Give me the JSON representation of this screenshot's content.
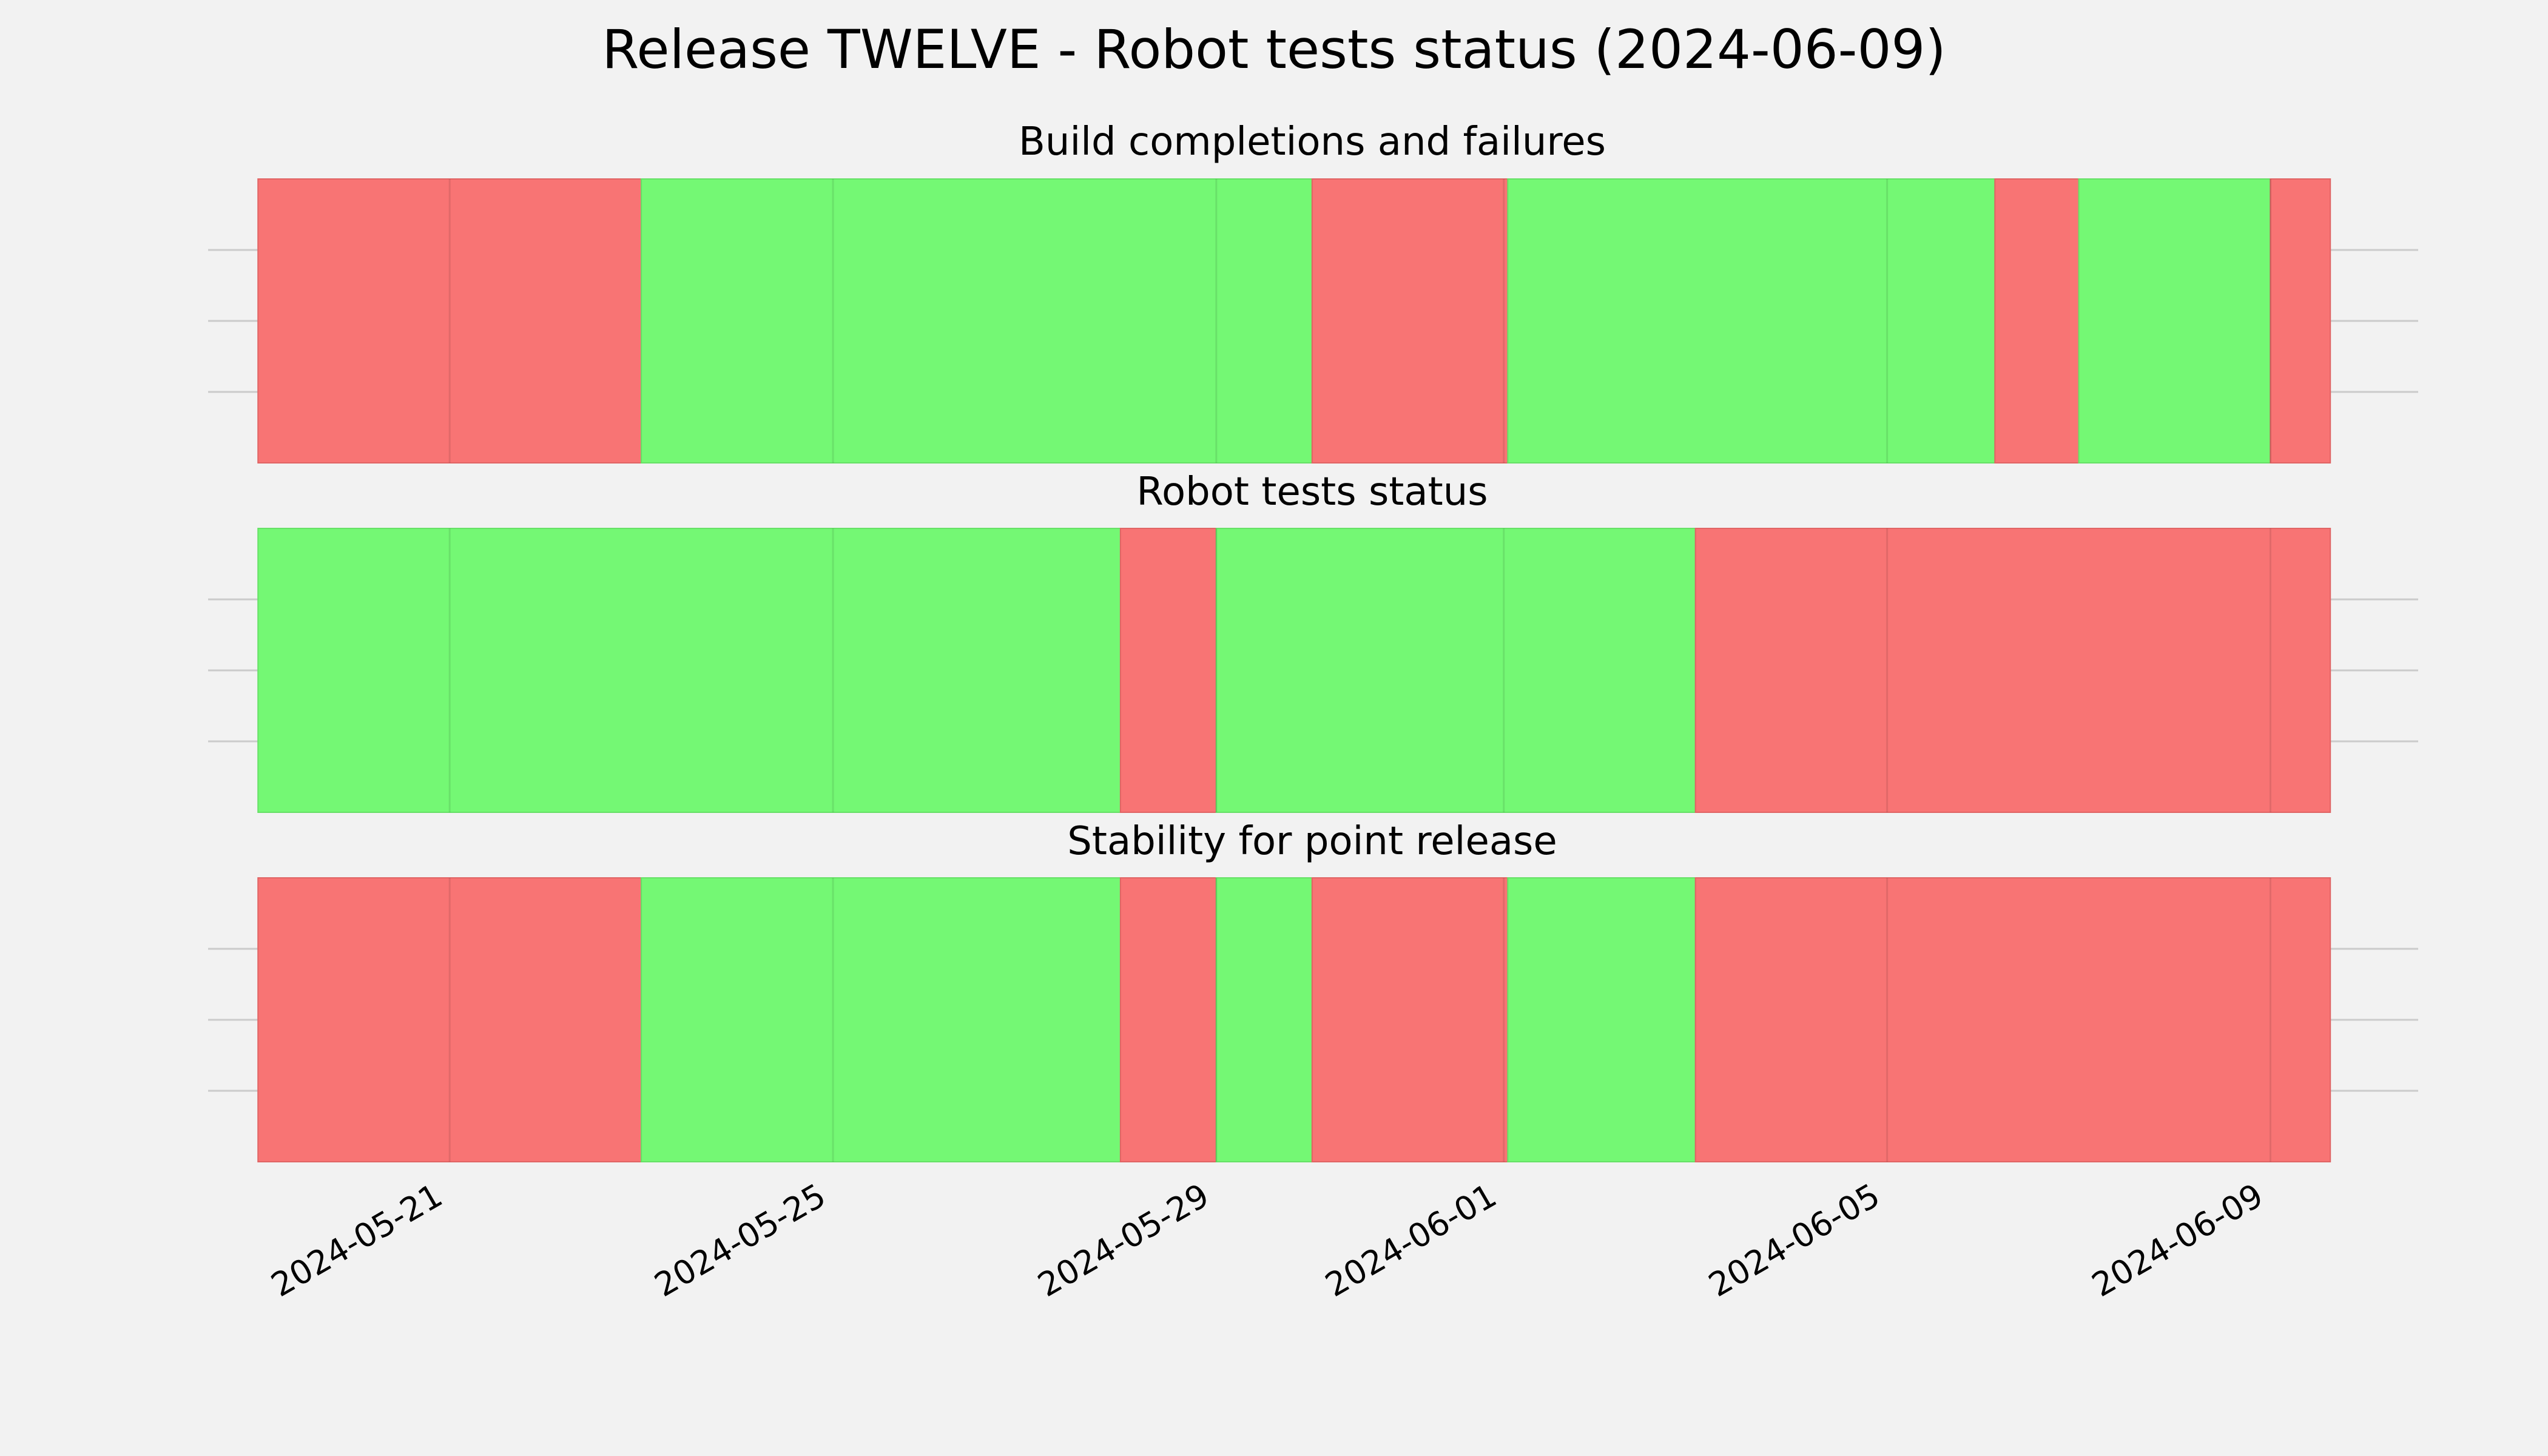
{
  "figure_title": "Release TWELVE - Robot tests status (2024-06-09)",
  "chart_data": {
    "type": "timeline",
    "x_axis_type": "date",
    "xlim": [
      "2024-05-18T11:30",
      "2024-06-10T13:00"
    ],
    "x_ticks": [
      "2024-05-21",
      "2024-05-25",
      "2024-05-29",
      "2024-06-01",
      "2024-06-05",
      "2024-06-09"
    ],
    "grid": true,
    "status_colors": {
      "pass": "#74f874",
      "fail": "#f87474"
    },
    "panels": [
      {
        "title": "Build completions and failures",
        "segments": [
          {
            "start": "2024-05-19T00:00",
            "end": "2024-05-23T00:00",
            "status": "fail"
          },
          {
            "start": "2024-05-23T00:00",
            "end": "2024-05-30T00:00",
            "status": "pass"
          },
          {
            "start": "2024-05-30T00:00",
            "end": "2024-06-01T01:00",
            "status": "fail"
          },
          {
            "start": "2024-06-01T01:00",
            "end": "2024-06-06T03:00",
            "status": "pass"
          },
          {
            "start": "2024-06-06T03:00",
            "end": "2024-06-07T00:00",
            "status": "fail"
          },
          {
            "start": "2024-06-07T00:00",
            "end": "2024-06-09T00:00",
            "status": "pass"
          },
          {
            "start": "2024-06-09T00:00",
            "end": "2024-06-09T15:00",
            "status": "fail"
          }
        ]
      },
      {
        "title": "Robot tests status",
        "segments": [
          {
            "start": "2024-05-19T00:00",
            "end": "2024-05-28T00:00",
            "status": "pass"
          },
          {
            "start": "2024-05-28T00:00",
            "end": "2024-05-29T00:00",
            "status": "fail"
          },
          {
            "start": "2024-05-29T00:00",
            "end": "2024-06-03T00:00",
            "status": "pass"
          },
          {
            "start": "2024-06-03T00:00",
            "end": "2024-06-09T15:00",
            "status": "fail"
          }
        ]
      },
      {
        "title": "Stability for point release",
        "segments": [
          {
            "start": "2024-05-19T00:00",
            "end": "2024-05-23T00:00",
            "status": "fail"
          },
          {
            "start": "2024-05-23T00:00",
            "end": "2024-05-28T00:00",
            "status": "pass"
          },
          {
            "start": "2024-05-28T00:00",
            "end": "2024-05-29T00:00",
            "status": "fail"
          },
          {
            "start": "2024-05-29T00:00",
            "end": "2024-05-30T00:00",
            "status": "pass"
          },
          {
            "start": "2024-05-30T00:00",
            "end": "2024-06-01T01:00",
            "status": "fail"
          },
          {
            "start": "2024-06-01T01:00",
            "end": "2024-06-03T00:00",
            "status": "pass"
          },
          {
            "start": "2024-06-03T00:00",
            "end": "2024-06-09T15:00",
            "status": "fail"
          }
        ]
      }
    ]
  }
}
